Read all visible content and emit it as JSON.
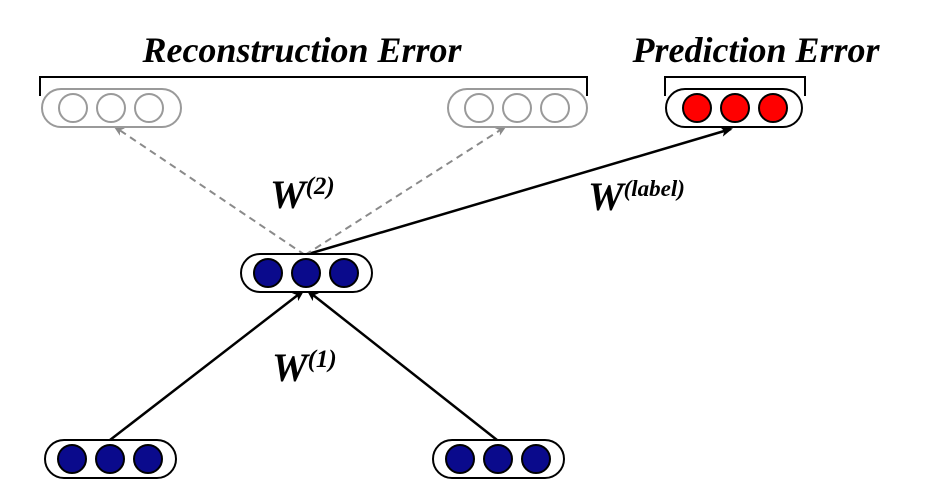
{
  "labels": {
    "reconstruction_error": "Reconstruction Error",
    "prediction_error": "Prediction Error",
    "w2": {
      "base": "W",
      "sup": "(2)"
    },
    "w1": {
      "base": "W",
      "sup": "(1)"
    },
    "wlabel": {
      "base": "W",
      "sup": "(label)"
    }
  },
  "colors": {
    "blue_node": "#0a0a8c",
    "red_node": "#ff0000",
    "gray_node": "#9a9a9a",
    "solid_line": "#000000",
    "dashed_line": "#8a8a8a"
  }
}
